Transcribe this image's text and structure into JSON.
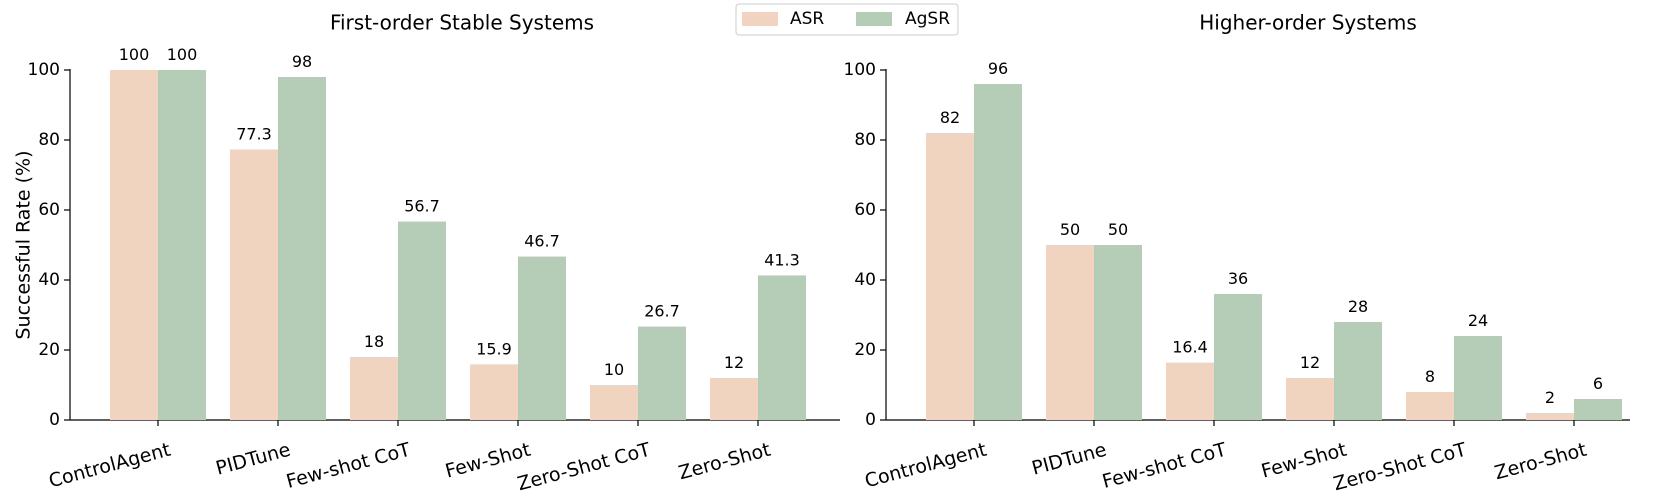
{
  "legend": {
    "location": "top-center",
    "items": [
      {
        "label": "ASR",
        "color": "#f1d4c0"
      },
      {
        "label": "AgSR",
        "color": "#b5cdb7"
      }
    ]
  },
  "chart_data": [
    {
      "type": "bar",
      "title": "First-order Stable Systems",
      "ylabel": "Successful Rate (%)",
      "xlabel": "",
      "ylim": [
        0,
        100
      ],
      "yticks": [
        0,
        20,
        40,
        60,
        80,
        100
      ],
      "categories": [
        "ControlAgent",
        "PIDTune",
        "Few-shot CoT",
        "Few-Shot",
        "Zero-Shot CoT",
        "Zero-Shot"
      ],
      "series": [
        {
          "name": "ASR",
          "color": "#f1d4c0",
          "values": [
            100,
            77.3,
            18,
            15.9,
            10,
            12
          ]
        },
        {
          "name": "AgSR",
          "color": "#b5cdb7",
          "values": [
            100,
            98,
            56.7,
            46.7,
            26.7,
            41.3
          ]
        }
      ],
      "grid": false
    },
    {
      "type": "bar",
      "title": "Higher-order Systems",
      "ylabel": "",
      "xlabel": "",
      "ylim": [
        0,
        100
      ],
      "yticks": [
        0,
        20,
        40,
        60,
        80,
        100
      ],
      "categories": [
        "ControlAgent",
        "PIDTune",
        "Few-shot CoT",
        "Few-Shot",
        "Zero-Shot CoT",
        "Zero-Shot"
      ],
      "series": [
        {
          "name": "ASR",
          "color": "#f1d4c0",
          "values": [
            82,
            50,
            16.4,
            12,
            8,
            2
          ]
        },
        {
          "name": "AgSR",
          "color": "#b5cdb7",
          "values": [
            96,
            50,
            36,
            28,
            24,
            6
          ]
        }
      ],
      "grid": false
    }
  ]
}
